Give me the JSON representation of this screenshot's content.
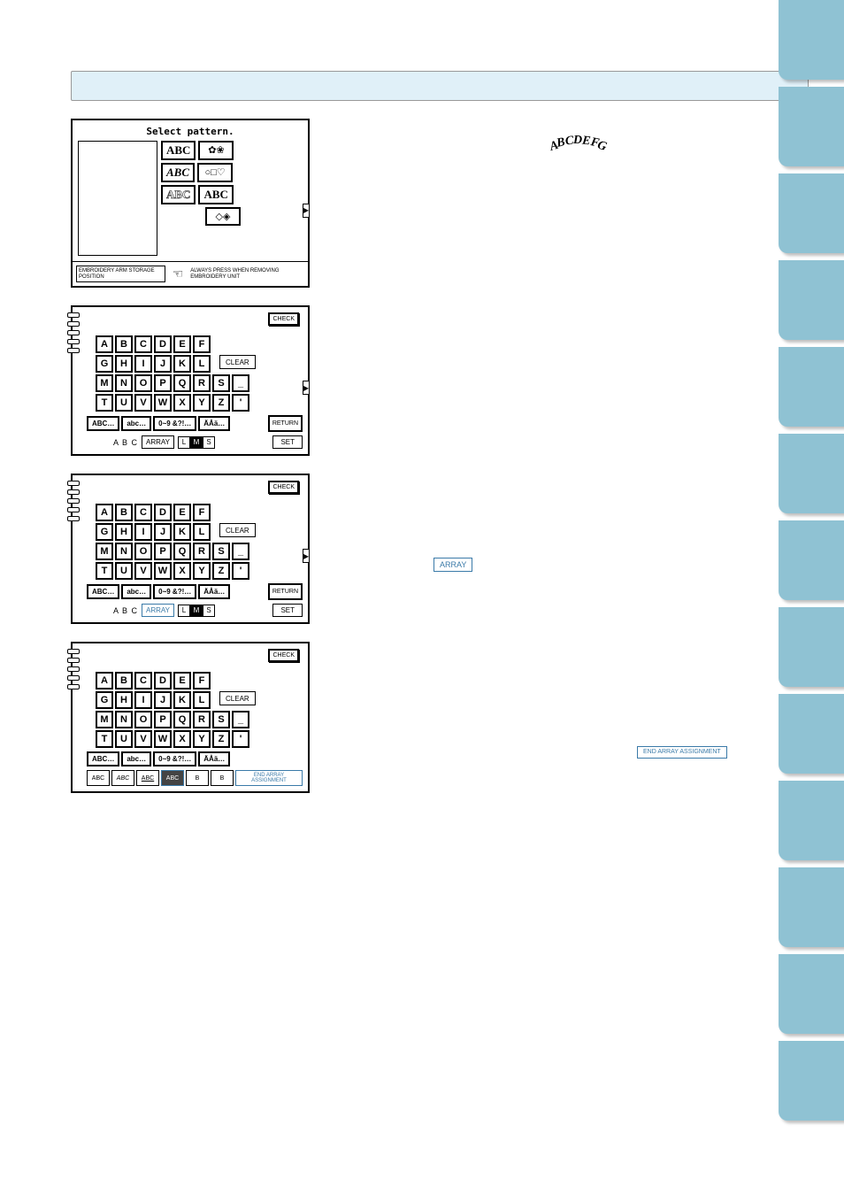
{
  "colors": {
    "tab": "#8fc2d3",
    "title_bg": "#e0f0f8",
    "accent": "#3a7aa8"
  },
  "panel1": {
    "title": "Select pattern.",
    "abc_styles": [
      "ABC",
      "ABC",
      "ABC",
      "ABC"
    ],
    "storage_label": "EMBROIDERY ARM STORAGE POSITION",
    "warning": "ALWAYS PRESS WHEN REMOVING EMBROIDERY UNIT"
  },
  "keyboard": {
    "check": "CHECK",
    "clear": "CLEAR",
    "return": "RETURN",
    "set": "SET",
    "array": "ARRAY",
    "abc_label": "A B C",
    "rows": [
      [
        "A",
        "B",
        "C",
        "D",
        "E",
        "F"
      ],
      [
        "G",
        "H",
        "I",
        "J",
        "K",
        "L"
      ],
      [
        "M",
        "N",
        "O",
        "P",
        "Q",
        "R",
        "S",
        "_"
      ],
      [
        "T",
        "U",
        "V",
        "W",
        "X",
        "Y",
        "Z",
        "'"
      ]
    ],
    "modes": [
      "ABC…",
      "abc…",
      "0~9 &?!…",
      "ÄÅä…"
    ],
    "sizes": [
      "L",
      "M",
      "S"
    ],
    "selected_size": "M"
  },
  "array_options": {
    "end_label": "END ARRAY ASSIGNMENT",
    "opts": [
      "ABC",
      "ABC",
      "ABC",
      "ABC",
      "B",
      "B"
    ]
  },
  "inline_array": "ARRAY",
  "inline_end": "END ARRAY ASSIGNMENT",
  "curve": [
    "A",
    "B",
    "C",
    "D",
    "E",
    "F",
    "G"
  ]
}
